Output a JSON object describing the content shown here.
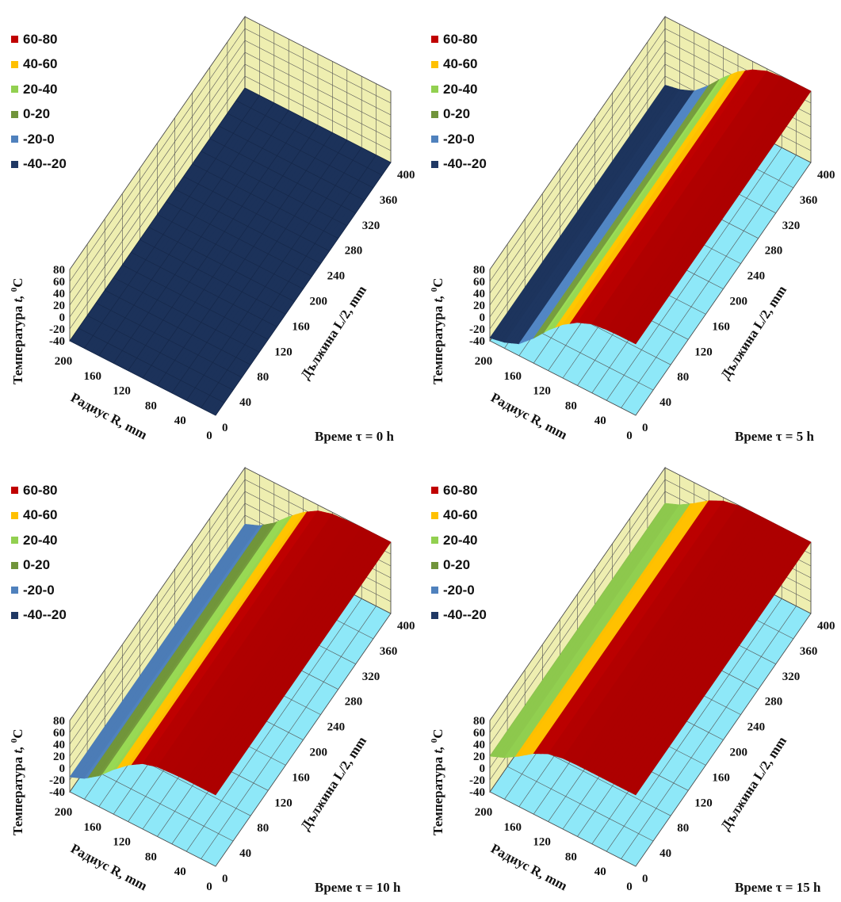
{
  "legend": {
    "labels": [
      "60-80",
      "40-60",
      "20-40",
      "0-20",
      "-20-0",
      "-40--20"
    ],
    "colors": [
      "#c00000",
      "#ffc000",
      "#92d050",
      "#70943a",
      "#4f81bd",
      "#1f3864"
    ]
  },
  "colors": {
    "wall": "#eeeeb0",
    "floor": "#8ee8f8",
    "grid": "#555555"
  },
  "axes": {
    "z_title": "Температура",
    "z_title_var": "t,",
    "z_title_unit": "C",
    "z_title_sup": "0",
    "x_title": "Радиус R, mm",
    "y_title": "Дължина L/2, mm",
    "z_ticks": [
      "80",
      "60",
      "40",
      "20",
      "0",
      "-20",
      "-40"
    ],
    "x_ticks": [
      "200",
      "160",
      "120",
      "80",
      "40",
      "0"
    ],
    "y_ticks": [
      "0",
      "40",
      "80",
      "120",
      "160",
      "200",
      "240",
      "280",
      "320",
      "360",
      "400"
    ]
  },
  "chart_data": [
    {
      "type": "surface",
      "caption": "Време τ = 0 h",
      "x_label": "Радиус R, mm",
      "y_label": "Дължина L/2, mm",
      "z_label": "Температура t, 0C",
      "x_range": [
        0,
        200
      ],
      "y_range": [
        0,
        400
      ],
      "z_range": [
        -40,
        80
      ],
      "surface_temperature": -40,
      "bands": [
        "60-80",
        "40-60",
        "20-40",
        "0-20",
        "-20-0",
        "-40--20"
      ]
    },
    {
      "type": "surface",
      "caption": "Време τ = 5 h",
      "x_label": "Радиус R, mm",
      "y_label": "Дължина L/2, mm",
      "z_label": "Температура t, 0C",
      "x_range": [
        0,
        200
      ],
      "y_range": [
        0,
        400
      ],
      "z_range": [
        -40,
        80
      ],
      "radial_profile": {
        "r": [
          0,
          20,
          40,
          60,
          80,
          100,
          120,
          140,
          160,
          180,
          200
        ],
        "t": [
          80,
          80,
          79,
          76,
          66,
          50,
          28,
          2,
          -20,
          -30,
          -35
        ]
      }
    },
    {
      "type": "surface",
      "caption": "Време τ = 10 h",
      "x_label": "Радиус R, mm",
      "y_label": "Дължина L/2, mm",
      "z_label": "Температура t, 0C",
      "x_range": [
        0,
        200
      ],
      "y_range": [
        0,
        400
      ],
      "z_range": [
        -40,
        80
      ],
      "radial_profile": {
        "r": [
          0,
          20,
          40,
          60,
          80,
          100,
          120,
          140,
          160,
          180,
          200
        ],
        "t": [
          80,
          80,
          80,
          79,
          77,
          70,
          55,
          35,
          12,
          -5,
          -15
        ]
      }
    },
    {
      "type": "surface",
      "caption": "Време τ = 15 h",
      "x_label": "Радиус R, mm",
      "y_label": "Дължина L/2, mm",
      "z_label": "Температура t, 0C",
      "x_range": [
        0,
        200
      ],
      "y_range": [
        0,
        400
      ],
      "z_range": [
        -40,
        80
      ],
      "radial_profile": {
        "r": [
          0,
          20,
          40,
          60,
          80,
          100,
          120,
          140,
          160,
          180,
          200
        ],
        "t": [
          80,
          80,
          80,
          80,
          80,
          79,
          74,
          62,
          45,
          30,
          20
        ]
      }
    }
  ]
}
